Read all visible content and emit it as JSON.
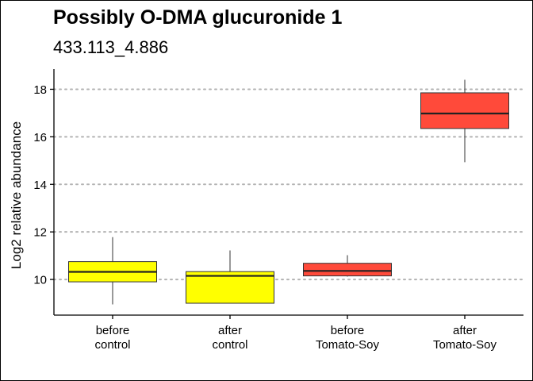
{
  "chart_data": {
    "type": "box",
    "title": "Possibly O-DMA glucuronide 1",
    "subtitle": "433.113_4.886",
    "xlabel": "",
    "ylabel": "Log2 relative abundance",
    "ylim": [
      8.5,
      18.85
    ],
    "yticks": [
      10,
      12,
      14,
      16,
      18
    ],
    "grid": "horizontal dotted",
    "legend": "none",
    "categories": [
      [
        "before",
        "control"
      ],
      [
        "after",
        "control"
      ],
      [
        "before",
        "Tomato-Soy"
      ],
      [
        "after",
        "Tomato-Soy"
      ]
    ],
    "boxes": [
      {
        "min": 8.95,
        "q1": 9.9,
        "median": 10.32,
        "q3": 10.75,
        "max": 11.78,
        "color": "#ffff00"
      },
      {
        "min": 9.0,
        "q1": 9.0,
        "median": 10.15,
        "q3": 10.33,
        "max": 11.22,
        "color": "#ffff00"
      },
      {
        "min": 10.12,
        "q1": 10.15,
        "median": 10.36,
        "q3": 10.68,
        "max": 11.02,
        "color": "#ff4a3a"
      },
      {
        "min": 14.93,
        "q1": 16.35,
        "median": 16.98,
        "q3": 17.85,
        "max": 18.4,
        "color": "#ff4a3a"
      }
    ]
  }
}
